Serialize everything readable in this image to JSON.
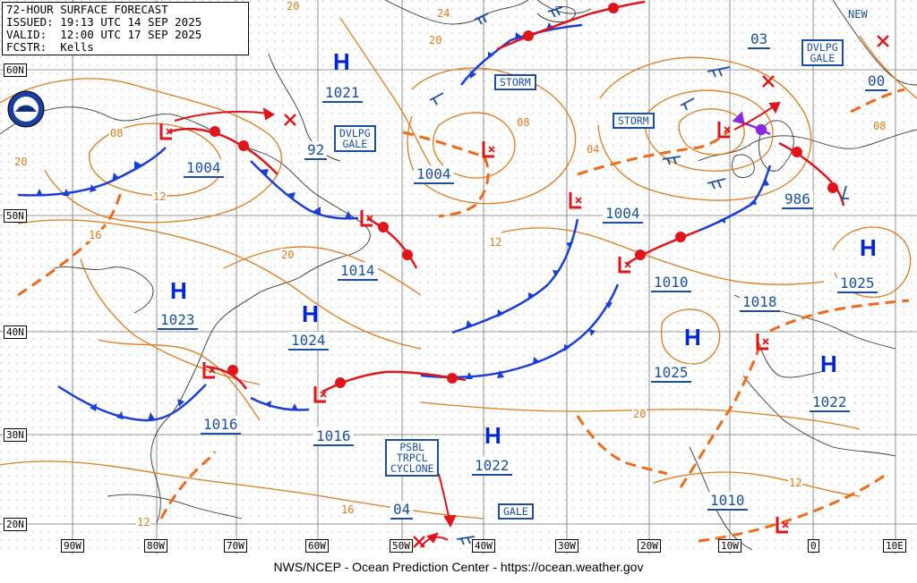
{
  "header": {
    "title": "72-HOUR SURFACE FORECAST",
    "issued": "ISSUED: 19:13 UTC 14 SEP 2025",
    "valid": "VALID:  12:00 UTC 17 SEP 2025",
    "forecaster": "FCSTR:  Kells"
  },
  "footer": "NWS/NCEP - Ocean Prediction Center - https://ocean.weather.gov",
  "latitudes": [
    "60N",
    "50N",
    "40N",
    "30N",
    "20N"
  ],
  "longitudes": [
    "90W",
    "80W",
    "70W",
    "60W",
    "50W",
    "40W",
    "30W",
    "20W",
    "10W",
    "0",
    "10E"
  ],
  "highs": [
    {
      "symbol": "H",
      "pressure": "1021"
    },
    {
      "symbol": "H",
      "pressure": "1023"
    },
    {
      "symbol": "H",
      "pressure": "1024"
    },
    {
      "symbol": "H",
      "pressure": "1022"
    },
    {
      "symbol": "H",
      "pressure": "1025"
    },
    {
      "symbol": "H",
      "pressure": "1025"
    },
    {
      "symbol": "H",
      "pressure": "1022"
    }
  ],
  "lows": [
    {
      "symbol": "L",
      "pressure": "1004"
    },
    {
      "symbol": "L",
      "pressure": "1014"
    },
    {
      "symbol": "L",
      "pressure": "1016"
    },
    {
      "symbol": "L",
      "pressure": "1016"
    },
    {
      "symbol": "L",
      "pressure": "1004"
    },
    {
      "symbol": "L",
      "pressure": "1004"
    },
    {
      "symbol": "L",
      "pressure": "1010"
    },
    {
      "symbol": "L",
      "pressure": "986"
    },
    {
      "symbol": "L",
      "pressure": "1018"
    },
    {
      "symbol": "L",
      "pressure": "1010"
    }
  ],
  "other_pressures": [
    "92",
    "03",
    "00",
    "04"
  ],
  "warnings": {
    "storm_1": "STORM",
    "storm_2": "STORM",
    "dvlpg_gale_1": "DVLPG\nGALE",
    "dvlpg_gale_2": "DVLPG\nGALE",
    "gale": "GALE",
    "psbl_trpcl": "PSBL\nTRPCL\nCYCLONE"
  },
  "new_label": "NEW",
  "isobar_labels": [
    "20",
    "24",
    "20",
    "08",
    "20",
    "12",
    "16",
    "20",
    "08",
    "04",
    "12",
    "08",
    "16",
    "20",
    "12",
    "12"
  ],
  "colors": {
    "cold_front": "#1a3fd9",
    "warm_front": "#e0151a",
    "isobar": "#e07a1a",
    "trough": "#f06a1a",
    "occluded": "#8a2be2",
    "label": "#1a4fa0"
  }
}
